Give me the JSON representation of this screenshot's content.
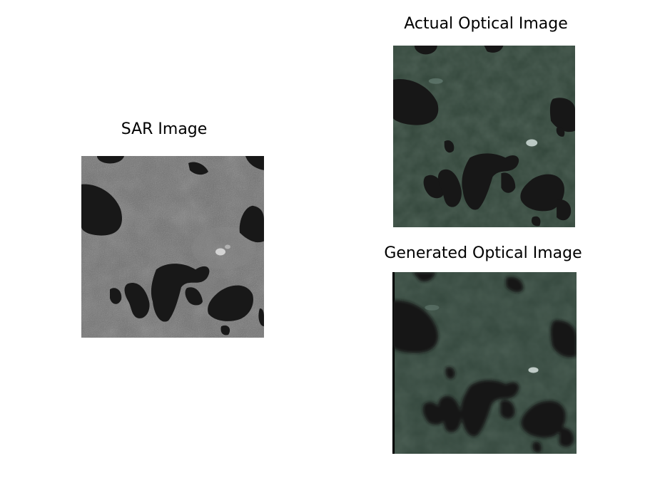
{
  "panels": {
    "sar": {
      "title": "SAR Image"
    },
    "actual": {
      "title": "Actual Optical Image"
    },
    "generated": {
      "title": "Generated Optical Image"
    }
  },
  "colors": {
    "sar_base": "#6b6b6b",
    "optical_base": "#34473c",
    "water": "#161616"
  }
}
